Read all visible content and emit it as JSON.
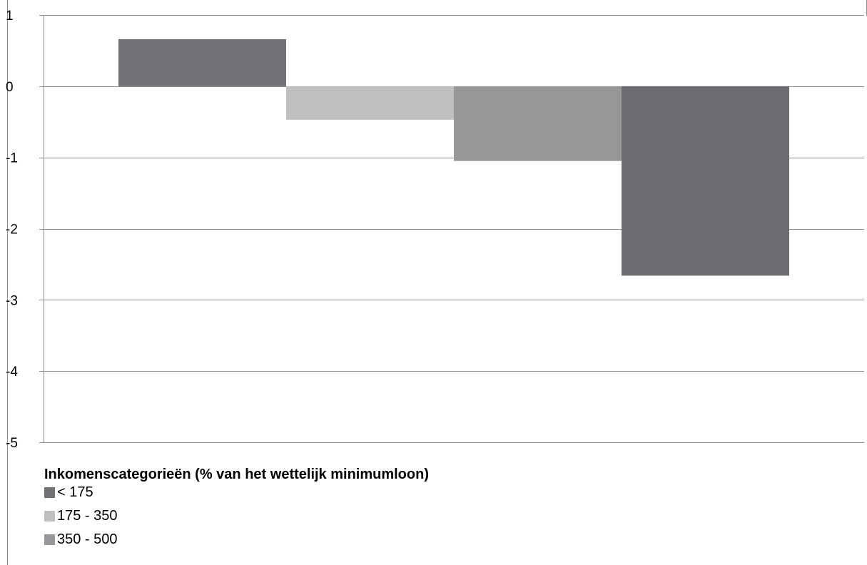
{
  "chart_data": {
    "type": "bar",
    "categories": [
      "< 175",
      "175 - 350",
      "350 - 500",
      ""
    ],
    "values": [
      0.66,
      -0.47,
      -1.05,
      -2.66
    ],
    "bar_colors": [
      "#727276",
      "#bfbfc1",
      "#97979a",
      "#6d6d71"
    ],
    "ylim": [
      -5,
      1
    ],
    "yticks": [
      1,
      0,
      -1,
      -2,
      -3,
      -4,
      -5
    ],
    "ytick_labels": [
      "1",
      "0",
      "-1",
      "-2",
      "-3",
      "-4",
      "-5"
    ],
    "grid": true,
    "title": "",
    "xlabel": "",
    "ylabel": "",
    "legend": {
      "position": "bottom-left",
      "title": "Inkomenscategorieën (% van het wettelijk minimumloon)",
      "items": [
        {
          "label": "< 175",
          "color": "#727276"
        },
        {
          "label": "175 - 350",
          "color": "#bfbfc1"
        },
        {
          "label": "350 - 500",
          "color": "#97979a"
        }
      ]
    }
  }
}
